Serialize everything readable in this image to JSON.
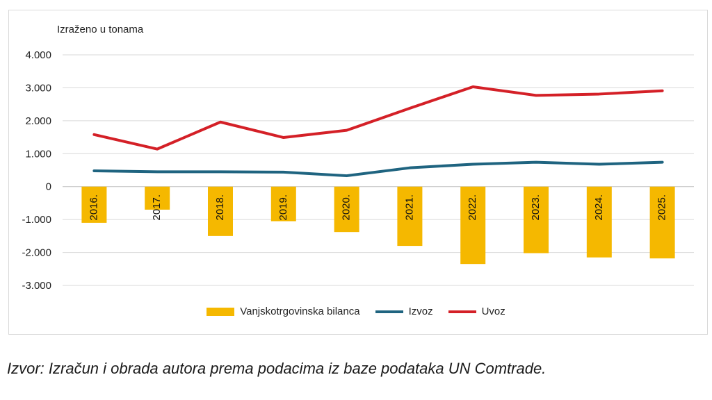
{
  "chart_data": {
    "type": "bar+line",
    "unit_label": "Izraženo u tonama",
    "categories": [
      "2016.",
      "2017.",
      "2018.",
      "2019.",
      "2020.",
      "2021.",
      "2022.",
      "2023.",
      "2024.",
      "2025."
    ],
    "ylim": [
      -3000,
      4000
    ],
    "yticks": [
      4000,
      3000,
      2000,
      1000,
      0,
      -1000,
      -2000,
      -3000
    ],
    "ytick_labels": [
      "4.000",
      "3.000",
      "2.000",
      "1.000",
      "0",
      "-1.000",
      "-2.000",
      "-3.000"
    ],
    "grid": true,
    "legend_position": "bottom",
    "series": [
      {
        "name": "Vanjskotrgovinska bilanca",
        "type": "bar",
        "color": "#F5B800",
        "values": [
          -1100,
          -700,
          -1500,
          -1050,
          -1380,
          -1800,
          -2350,
          -2020,
          -2150,
          -2180
        ]
      },
      {
        "name": "Izvoz",
        "type": "line",
        "color": "#1F6480",
        "values": [
          480,
          450,
          450,
          440,
          330,
          570,
          680,
          740,
          680,
          740
        ]
      },
      {
        "name": "Uvoz",
        "type": "line",
        "color": "#D42027",
        "values": [
          1580,
          1140,
          1960,
          1490,
          1710,
          2380,
          3030,
          2770,
          2810,
          2910
        ]
      }
    ]
  },
  "source": "Izvor: Izračun i obrada autora prema podacima iz baze podataka UN Comtrade."
}
